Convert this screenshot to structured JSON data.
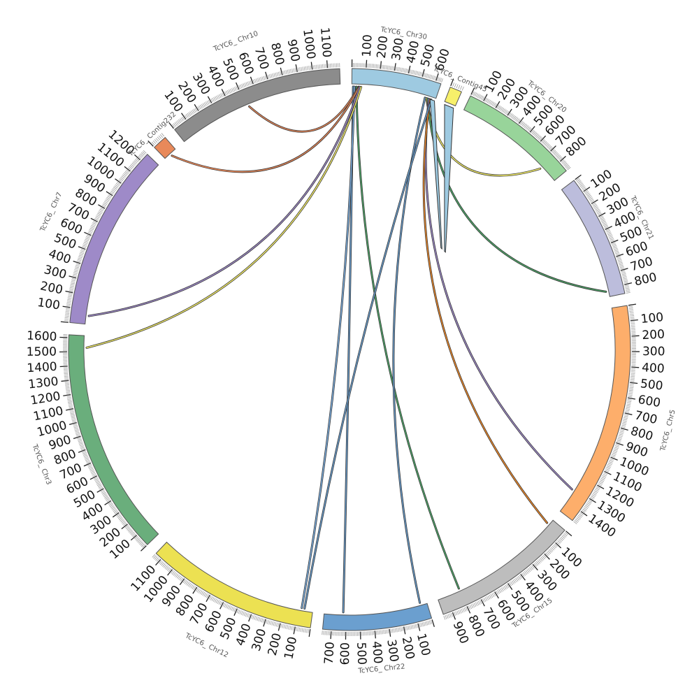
{
  "chart_data": {
    "type": "chord",
    "unit_kb": 100,
    "segments": [
      {
        "id": "chr30",
        "name": "TcYC6_ Chr30",
        "color": "#9ecae1",
        "start": 0.5,
        "end": 19.0,
        "length": 640,
        "ticks": [
          "100",
          "200",
          "300",
          "400",
          "500",
          "600"
        ]
      },
      {
        "id": "contig45",
        "name": "TcYC6_ Contig45",
        "color": "#f7f06a",
        "start": 21.0,
        "end": 23.5,
        "length": 60,
        "ticks": []
      },
      {
        "id": "chr20",
        "name": "TcYC6_ Chr20",
        "color": "#98d49a",
        "start": 25.5,
        "end": 50.5,
        "length": 880,
        "ticks": [
          "100",
          "200",
          "300",
          "400",
          "500",
          "600",
          "700",
          "800"
        ]
      },
      {
        "id": "chr21",
        "name": "TcYC6_ Chr21",
        "color": "#bcbddc",
        "start": 53.0,
        "end": 78.5,
        "length": 860,
        "ticks": [
          "100",
          "200",
          "300",
          "400",
          "500",
          "600",
          "700",
          "800"
        ]
      },
      {
        "id": "chr5",
        "name": "TcYC6_ Chr5",
        "color": "#fdae6b",
        "start": 81.0,
        "end": 127.5,
        "length": 1480,
        "ticks": [
          "100",
          "200",
          "300",
          "400",
          "500",
          "600",
          "700",
          "800",
          "900",
          "1000",
          "1100",
          "1200",
          "1300",
          "1400"
        ]
      },
      {
        "id": "chr15",
        "name": "TcYC6_ Chr15",
        "color": "#bdbdbd",
        "start": 130.0,
        "end": 160.5,
        "length": 960,
        "ticks": [
          "100",
          "200",
          "300",
          "400",
          "500",
          "600",
          "700",
          "800",
          "900"
        ]
      },
      {
        "id": "chr22",
        "name": "TcYC6_ Chr22",
        "color": "#6b9fcf",
        "start": 163.0,
        "end": 185.5,
        "length": 760,
        "ticks": [
          "100",
          "200",
          "300",
          "400",
          "500",
          "600",
          "700"
        ]
      },
      {
        "id": "chr12",
        "name": "TcYC6_ Chr12",
        "color": "#ece152",
        "start": 188.0,
        "end": 223.5,
        "length": 1150,
        "ticks": [
          "100",
          "200",
          "300",
          "400",
          "500",
          "600",
          "700",
          "800",
          "900",
          "1000",
          "1100"
        ]
      },
      {
        "id": "chr3",
        "name": "TcYC6_ Chr3",
        "color": "#6aae7c",
        "start": 226.0,
        "end": 273.0,
        "length": 1620,
        "ticks": [
          "100",
          "200",
          "300",
          "400",
          "500",
          "600",
          "700",
          "800",
          "900",
          "1000",
          "1100",
          "1200",
          "1300",
          "1400",
          "1500",
          "1600"
        ]
      },
      {
        "id": "chr7",
        "name": "TcYC6_ Chr7",
        "color": "#9e8ac8",
        "start": 275.5,
        "end": 314.0,
        "length": 1260,
        "ticks": [
          "100",
          "200",
          "300",
          "400",
          "500",
          "600",
          "700",
          "800",
          "900",
          "1000",
          "1100",
          "1200"
        ]
      },
      {
        "id": "contig232",
        "name": "TcYC6_ Contig232",
        "color": "#e8895a",
        "start": 316.0,
        "end": 319.0,
        "length": 80,
        "ticks": []
      },
      {
        "id": "chr10",
        "name": "TcYC6_ Chr10",
        "color": "#8c8c8c",
        "start": 321.5,
        "end": 358.0,
        "length": 1180,
        "ticks": [
          "100",
          "200",
          "300",
          "400",
          "500",
          "600",
          "700",
          "800",
          "900",
          "1000",
          "1100"
        ]
      }
    ],
    "links": [
      {
        "from": "chr30",
        "from_pos": 10,
        "to": "chr22",
        "to_pos": 620,
        "color": "#6b9fcf"
      },
      {
        "from": "chr30",
        "from_pos": 20,
        "to": "chr12",
        "to_pos": 80,
        "color": "#7fb3e6"
      },
      {
        "from": "chr30",
        "from_pos": 35,
        "to": "chr15",
        "to_pos": 800,
        "color": "#4fa86a"
      },
      {
        "from": "chr30",
        "from_pos": 50,
        "to": "chr10",
        "to_pos": 520,
        "color": "#e8895a"
      },
      {
        "from": "chr30",
        "from_pos": 55,
        "to": "contig232",
        "to_pos": 40,
        "color": "#e8895a"
      },
      {
        "from": "chr30",
        "from_pos": 60,
        "to": "chr7",
        "to_pos": 60,
        "color": "#9e8ac8"
      },
      {
        "from": "chr30",
        "from_pos": 70,
        "to": "chr3",
        "to_pos": 1530,
        "color": "#f7f06a"
      },
      {
        "from": "chr30",
        "from_pos": 560,
        "to": "chr22",
        "to_pos": 50,
        "color": "#6b9fcf"
      },
      {
        "from": "chr30",
        "from_pos": 570,
        "to": "chr20",
        "to_pos": 740,
        "color": "#f7f06a"
      },
      {
        "from": "chr30",
        "from_pos": 580,
        "to": "chr21",
        "to_pos": 820,
        "color": "#4fa86a"
      },
      {
        "from": "chr30",
        "from_pos": 590,
        "to": "chr5",
        "to_pos": 1310,
        "color": "#9e8ac8"
      },
      {
        "from": "chr30",
        "from_pos": 600,
        "to": "chr15",
        "to_pos": 40,
        "color": "#f08a2a"
      },
      {
        "from": "chr30",
        "from_pos": 610,
        "to": "chr12",
        "to_pos": 60,
        "color": "#6b9fcf"
      }
    ],
    "ribbons": [
      {
        "from": "chr30",
        "from_range": [
          600,
          635
        ],
        "to_angle": 42,
        "color": "#9ecae1"
      },
      {
        "from": "contig45",
        "from_range": [
          5,
          55
        ],
        "to_angle": 44,
        "color": "#9ecae1"
      }
    ]
  }
}
